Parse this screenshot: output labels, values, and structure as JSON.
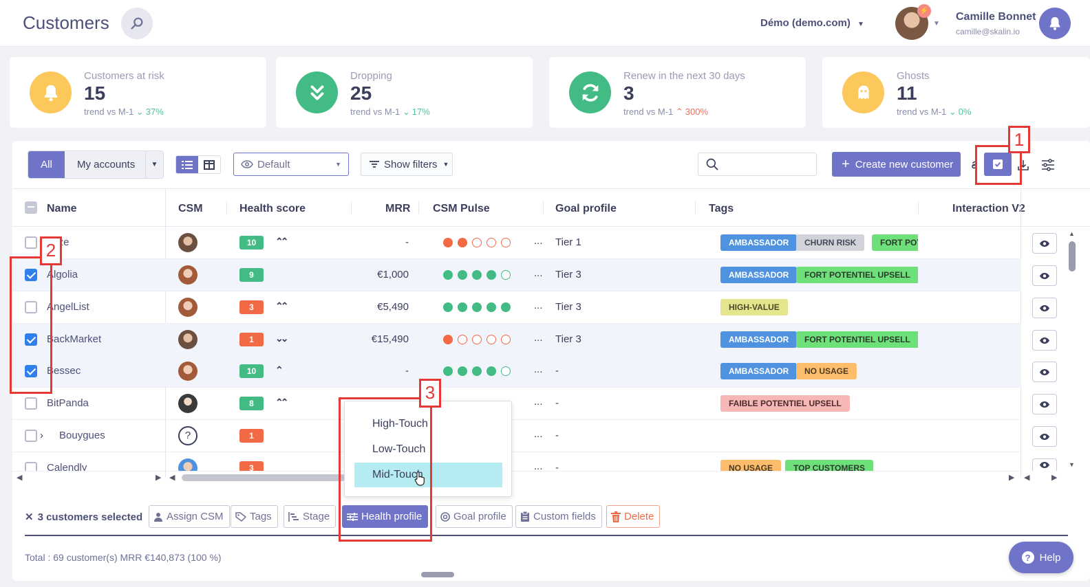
{
  "header": {
    "title": "Customers",
    "org": "Démo (demo.com)",
    "user_name": "Camille Bonnet",
    "user_email": "camille@skalin.io"
  },
  "kpis": [
    {
      "label": "Customers at risk",
      "value": "15",
      "trend_label": "trend vs M-1",
      "trend_dir": "down",
      "trend_value": "37%",
      "color": "#fcc75b",
      "icon": "bell-icon"
    },
    {
      "label": "Dropping",
      "value": "25",
      "trend_label": "trend vs M-1",
      "trend_dir": "down",
      "trend_value": "17%",
      "color": "#42bb85",
      "icon": "double-chevron-down-icon"
    },
    {
      "label": "Renew in the next 30 days",
      "value": "3",
      "trend_label": "trend vs M-1",
      "trend_dir": "up",
      "trend_value": "300%",
      "color": "#42bb85",
      "icon": "refresh-icon"
    },
    {
      "label": "Ghosts",
      "value": "11",
      "trend_label": "trend vs M-1",
      "trend_dir": "down",
      "trend_value": "0%",
      "color": "#fcc75b",
      "icon": "ghost-icon"
    }
  ],
  "toolbar": {
    "all_label": "All",
    "my_accounts_label": "My accounts",
    "view_label": "Default",
    "filters_label": "Show filters",
    "search_placeholder": "",
    "create_label": "Create new customer"
  },
  "columns": [
    "Name",
    "CSM",
    "Health score",
    "MRR",
    "CSM Pulse",
    "Goal profile",
    "Tags",
    "Interaction V2"
  ],
  "rows": [
    {
      "name": "prize",
      "checked": false,
      "csm": "woman-dark",
      "health": "10",
      "health_color": "g",
      "trend": "⌃⌃",
      "mrr": "-",
      "pulse": [
        "red",
        "red",
        "empty-red",
        "empty-red",
        "empty-red"
      ],
      "more": "...",
      "goal": "Tier 1",
      "tags": [
        [
          "AMBASSADOR",
          "blue"
        ],
        [
          "CHURN RISK",
          "grey"
        ],
        [
          "FORT POTEN",
          "green"
        ]
      ]
    },
    {
      "name": "Algolia",
      "checked": true,
      "csm": "woman-red",
      "health": "9",
      "health_color": "g",
      "trend": "",
      "mrr": "€1,000",
      "pulse": [
        "green",
        "green",
        "green",
        "green",
        "empty-green"
      ],
      "more": "...",
      "goal": "Tier 3",
      "tags": [
        [
          "AMBASSADOR",
          "blue"
        ],
        [
          "FORT POTENTIEL UPSELL",
          "green"
        ]
      ]
    },
    {
      "name": "AngelList",
      "checked": false,
      "csm": "woman-red",
      "health": "3",
      "health_color": "o",
      "trend": "⌃⌃",
      "mrr": "€5,490",
      "pulse": [
        "green",
        "green",
        "green",
        "green",
        "green"
      ],
      "more": "...",
      "goal": "Tier 3",
      "tags": [
        [
          "HIGH-VALUE",
          "yellow"
        ]
      ]
    },
    {
      "name": "BackMarket",
      "checked": true,
      "csm": "woman-dark",
      "health": "1",
      "health_color": "o",
      "trend": "⌄⌄",
      "mrr": "€15,490",
      "pulse": [
        "red",
        "empty-red",
        "empty-red",
        "empty-red",
        "empty-red"
      ],
      "more": "...",
      "goal": "Tier 3",
      "tags": [
        [
          "AMBASSADOR",
          "blue"
        ],
        [
          "FORT POTENTIEL UPSELL",
          "green"
        ]
      ]
    },
    {
      "name": "Bessec",
      "checked": true,
      "csm": "woman-red",
      "health": "10",
      "health_color": "g",
      "trend": "⌃",
      "mrr": "-",
      "pulse": [
        "green",
        "green",
        "green",
        "green",
        "empty-green"
      ],
      "more": "...",
      "goal": "-",
      "tags": [
        [
          "AMBASSADOR",
          "blue"
        ],
        [
          "NO USAGE",
          "orange"
        ]
      ]
    },
    {
      "name": "BitPanda",
      "checked": false,
      "csm": "man-beard",
      "health": "8",
      "health_color": "g",
      "trend": "⌃⌃",
      "mrr": "",
      "pulse": [],
      "more": "...",
      "goal": "-",
      "tags": [
        [
          "FAIBLE POTENTIEL UPSELL",
          "pink"
        ]
      ]
    },
    {
      "name": "Bouygues",
      "checked": false,
      "csm": "unknown",
      "health": "1",
      "health_color": "o",
      "trend": "",
      "mrr": "",
      "pulse": [],
      "more": "...",
      "goal": "-",
      "tags": []
    },
    {
      "name": "Calendly",
      "checked": false,
      "csm": "woman-blue",
      "health": "3",
      "health_color": "o",
      "trend": "",
      "mrr": "",
      "pulse": [],
      "more": "...",
      "goal": "-",
      "tags": [
        [
          "NO USAGE",
          "orange"
        ],
        [
          "TOP CUSTOMERS",
          "green"
        ]
      ]
    }
  ],
  "dropdown": {
    "options": [
      "High-Touch",
      "Low-Touch",
      "Mid-Touch"
    ],
    "active": "Mid-Touch"
  },
  "actions": {
    "selected_text": "3 customers selected",
    "assign_csm": "Assign CSM",
    "tags": "Tags",
    "stage": "Stage",
    "health_profile": "Health profile",
    "goal_profile": "Goal profile",
    "custom_fields": "Custom fields",
    "delete": "Delete"
  },
  "footer": {
    "total": "Total : 69 customer(s) MRR €140,873 (100 %)",
    "help": "Help"
  },
  "annotations": [
    "1",
    "2",
    "3"
  ],
  "colors": {
    "accent": "#6f74c9",
    "annotation": "#e53935",
    "checkbox": "#2f80ed"
  }
}
